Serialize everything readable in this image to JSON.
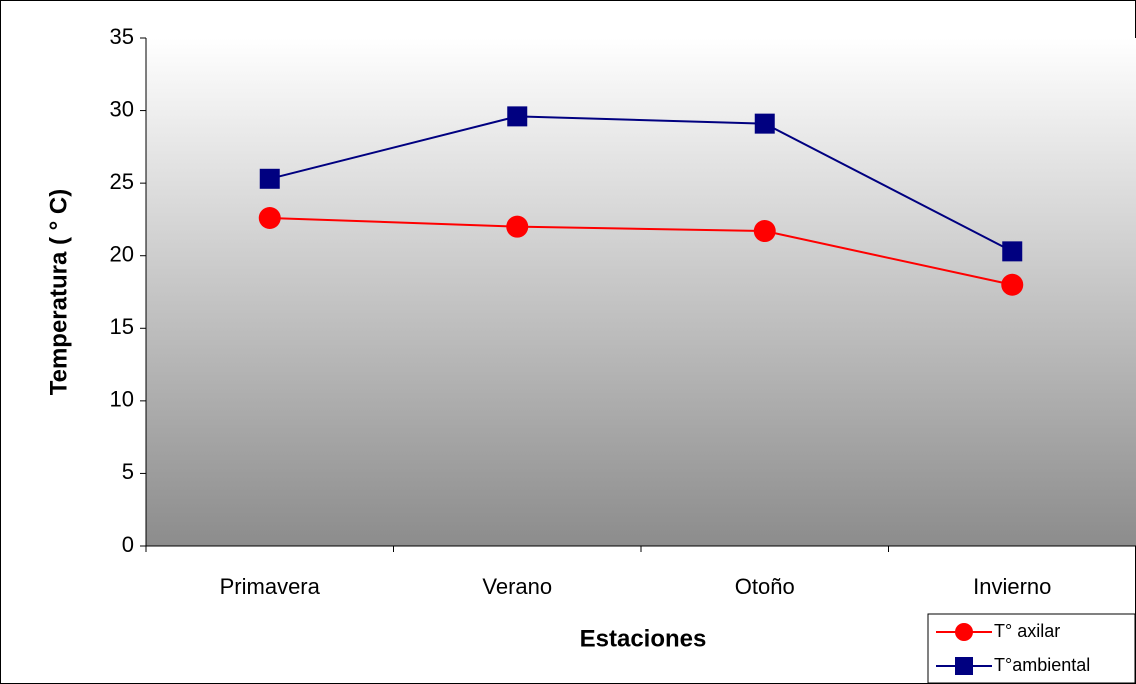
{
  "chart_data": {
    "type": "line",
    "x_label": "Estaciones",
    "y_label": "Temperatura ( ° C)",
    "categories": [
      "Primavera",
      "Verano",
      "Otoño",
      "Invierno"
    ],
    "series": [
      {
        "name": "T° axilar",
        "color": "#ff0000",
        "marker": "circle",
        "values": [
          22.6,
          22.0,
          21.7,
          18.0
        ]
      },
      {
        "name": "T°ambiental",
        "color": "#000080",
        "marker": "square",
        "values": [
          25.3,
          29.6,
          29.1,
          20.3
        ]
      }
    ],
    "ylim": [
      0,
      35
    ],
    "yticks": [
      0,
      5,
      10,
      15,
      20,
      25,
      30,
      35
    ],
    "legend": "bottom-right"
  }
}
